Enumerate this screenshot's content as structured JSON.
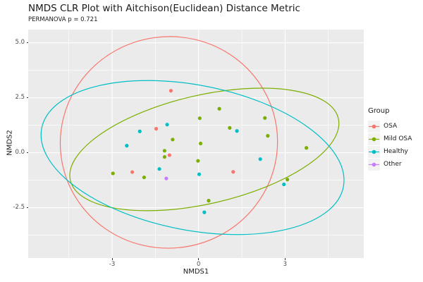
{
  "title": "NMDS CLR Plot with Aitchison(Euclidean) Distance Metric",
  "subtitle": "PERMANOVA p = 0.721",
  "chart_data": {
    "type": "scatter",
    "title": "NMDS CLR Plot with Aitchison(Euclidean) Distance Metric",
    "subtitle": "PERMANOVA p = 0.721",
    "xlabel": "NMDS1",
    "ylabel": "NMDS2",
    "xlim": [
      -5.91,
      5.73
    ],
    "ylim": [
      -4.79,
      5.6
    ],
    "grid": true,
    "panel_bg": "#EBEBEB",
    "grid_color": "#FFFFFF",
    "legend_title": "Group",
    "legend_position": "right",
    "x_ticks": {
      "values": [
        -3,
        0,
        3
      ],
      "labels": [
        "-3",
        "0",
        "3"
      ]
    },
    "y_ticks": {
      "values": [
        5.0,
        2.5,
        0.0,
        -2.5
      ],
      "labels": [
        "5.0",
        "2.5",
        "0.0",
        "-2.5"
      ]
    },
    "x_minor_ticks": [
      -4.5,
      -1.5,
      1.5,
      4.5
    ],
    "y_minor_ticks": [
      3.75,
      1.25,
      -1.25,
      -3.75
    ],
    "series": [
      {
        "name": "OSA",
        "color": "#F8766D",
        "points": [
          [
            -0.96,
            2.82
          ],
          [
            -1.47,
            1.09
          ],
          [
            -1.01,
            -0.11
          ],
          [
            -2.3,
            -0.88
          ],
          [
            1.2,
            -0.87
          ]
        ],
        "ellipse": {
          "center": [
            -1.03,
            0.47
          ],
          "rx": 3.77,
          "ry": 4.81,
          "rotation": -8
        }
      },
      {
        "name": "Mild OSA",
        "color": "#7CAE00",
        "points": [
          [
            0.72,
            2.0
          ],
          [
            0.04,
            1.57
          ],
          [
            2.3,
            1.58
          ],
          [
            1.08,
            1.13
          ],
          [
            -0.9,
            0.6
          ],
          [
            0.07,
            0.42
          ],
          [
            -1.18,
            0.09
          ],
          [
            -1.18,
            -0.19
          ],
          [
            -0.02,
            -0.37
          ],
          [
            -2.97,
            -0.94
          ],
          [
            -1.89,
            -1.12
          ],
          [
            2.4,
            0.77
          ],
          [
            3.74,
            0.22
          ],
          [
            3.08,
            -1.22
          ],
          [
            0.35,
            -2.18
          ]
        ],
        "ellipse": {
          "center": [
            0.2,
            0.15
          ],
          "rx": 4.77,
          "ry": 2.47,
          "rotation": -13
        }
      },
      {
        "name": "Healthy",
        "color": "#00BFC4",
        "points": [
          [
            -2.04,
            0.97
          ],
          [
            -1.09,
            1.28
          ],
          [
            1.33,
            0.99
          ],
          [
            -2.49,
            0.32
          ],
          [
            -1.36,
            -0.74
          ],
          [
            0.02,
            -0.98
          ],
          [
            2.14,
            -0.29
          ],
          [
            2.96,
            -1.44
          ],
          [
            0.2,
            -2.71
          ]
        ],
        "ellipse": {
          "center": [
            -0.21,
            -0.22
          ],
          "rx": 5.33,
          "ry": 3.3,
          "rotation": 11
        }
      },
      {
        "name": "Other",
        "color": "#C77CFF",
        "points": [
          [
            -1.12,
            -1.17
          ]
        ],
        "ellipse": null
      }
    ]
  }
}
